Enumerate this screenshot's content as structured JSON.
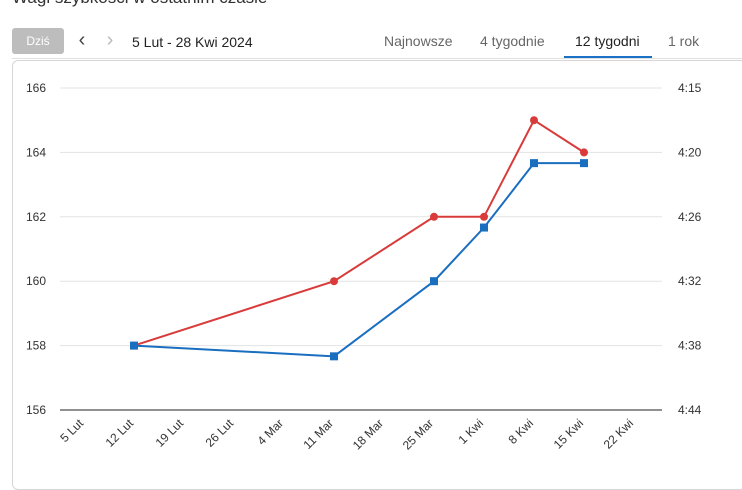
{
  "header": {
    "title_cut": "Wagi szybkości w ostatnim czasie"
  },
  "toolbar": {
    "today_label": "Dziś",
    "range_label": "5 Lut - 28 Kwi 2024",
    "tabs": [
      {
        "label": "Najnowsze"
      },
      {
        "label": "4 tygodnie"
      },
      {
        "label": "12 tygodni"
      },
      {
        "label": "1 rok"
      }
    ]
  },
  "icons": {
    "prev": "chevron-left-icon",
    "next": "chevron-right-icon"
  },
  "colors": {
    "series_red": "#d93a3a",
    "series_blue": "#1a6ec0",
    "active_tab": "#1a73c8"
  },
  "chart_data": {
    "type": "line",
    "categories": [
      "5 Lut",
      "12 Lut",
      "19 Lut",
      "26 Lut",
      "4 Mar",
      "11 Mar",
      "18 Mar",
      "25 Mar",
      "1 Kwi",
      "8 Kwi",
      "15 Kwi",
      "22 Kwi"
    ],
    "y_left": {
      "ticks": [
        "166",
        "164",
        "162",
        "160",
        "158",
        "156"
      ],
      "range": [
        156,
        166
      ]
    },
    "y_right": {
      "ticks": [
        "4:15",
        "4:20",
        "4:26",
        "4:32",
        "4:38",
        "4:44"
      ]
    },
    "grid": true,
    "series": [
      {
        "axis": "left",
        "marker": "circle",
        "color": "#d93a3a",
        "points": [
          {
            "x": "12 Lut",
            "y": 158
          },
          {
            "x": "11 Mar",
            "y": 160
          },
          {
            "x": "25 Mar",
            "y": 162
          },
          {
            "x": "1 Kwi",
            "y": 162
          },
          {
            "x": "8 Kwi",
            "y": 165
          },
          {
            "x": "15 Kwi",
            "y": 164
          }
        ]
      },
      {
        "axis": "right",
        "marker": "square",
        "color": "#1a6ec0",
        "points": [
          {
            "x": "12 Lut",
            "y": "4:38"
          },
          {
            "x": "11 Mar",
            "y": "4:39"
          },
          {
            "x": "25 Mar",
            "y": "4:32"
          },
          {
            "x": "1 Kwi",
            "y": "4:27"
          },
          {
            "x": "8 Kwi",
            "y": "4:21"
          },
          {
            "x": "15 Kwi",
            "y": "4:21"
          }
        ]
      }
    ]
  }
}
